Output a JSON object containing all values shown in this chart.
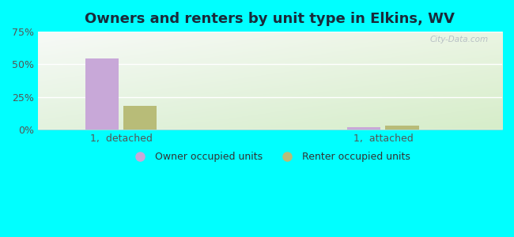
{
  "title": "Owners and renters by unit type in Elkins, WV",
  "title_fontsize": 13,
  "categories": [
    "1,  detached",
    "1,  attached"
  ],
  "owner_values": [
    54.5,
    1.8
  ],
  "renter_values": [
    18.0,
    3.2
  ],
  "owner_color": "#c8a8d8",
  "renter_color": "#b8bc78",
  "ylim": [
    0,
    75
  ],
  "yticks": [
    0,
    25,
    50,
    75
  ],
  "yticklabels": [
    "0%",
    "25%",
    "50%",
    "75%"
  ],
  "background_color": "#00ffff",
  "bar_width": 0.28,
  "group_positions": [
    1.0,
    3.2
  ],
  "legend_labels": [
    "Owner occupied units",
    "Renter occupied units"
  ],
  "watermark": "City-Data.com",
  "xlim": [
    0.3,
    4.2
  ]
}
